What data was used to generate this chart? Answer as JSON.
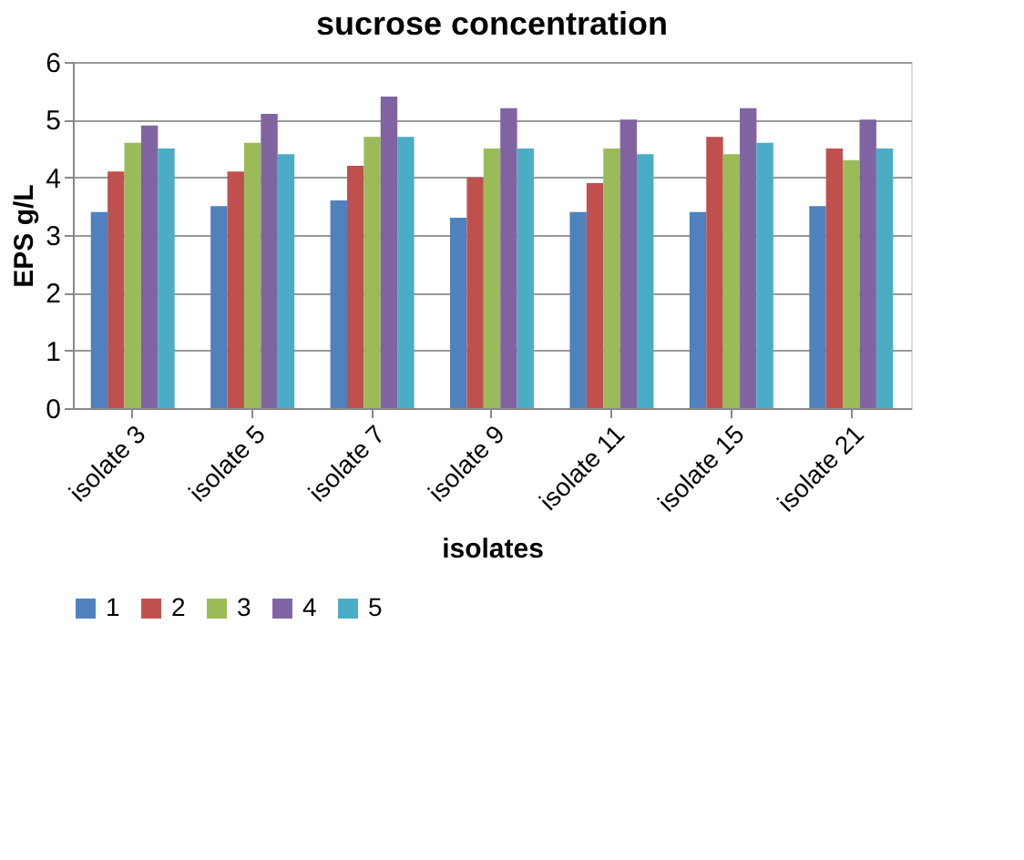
{
  "chart_data": {
    "type": "bar",
    "title": "sucrose concentration",
    "xlabel": "isolates",
    "ylabel": "EPS g/L",
    "categories": [
      "isolate 3",
      "isolate 5",
      "isolate 7",
      "isolate 9",
      "isolate 11",
      "isolate 15",
      "isolate 21"
    ],
    "series": [
      {
        "name": "1",
        "color": "#4f81bd",
        "values": [
          3.4,
          3.5,
          3.6,
          3.3,
          3.4,
          3.4,
          3.5
        ]
      },
      {
        "name": "2",
        "color": "#c0504d",
        "values": [
          4.1,
          4.1,
          4.2,
          4.0,
          3.9,
          4.7,
          4.5
        ]
      },
      {
        "name": "3",
        "color": "#9bbb59",
        "values": [
          4.6,
          4.6,
          4.7,
          4.5,
          4.5,
          4.4,
          4.3
        ]
      },
      {
        "name": "4",
        "color": "#8064a2",
        "values": [
          4.9,
          5.1,
          5.4,
          5.2,
          5.0,
          5.2,
          5.0
        ]
      },
      {
        "name": "5",
        "color": "#4bacc6",
        "values": [
          4.5,
          4.4,
          4.7,
          4.5,
          4.4,
          4.6,
          4.5
        ]
      }
    ],
    "ylim": [
      0,
      6
    ],
    "yticks": [
      0,
      1,
      2,
      3,
      4,
      5,
      6
    ],
    "grid": "y",
    "legend": "bottom"
  }
}
